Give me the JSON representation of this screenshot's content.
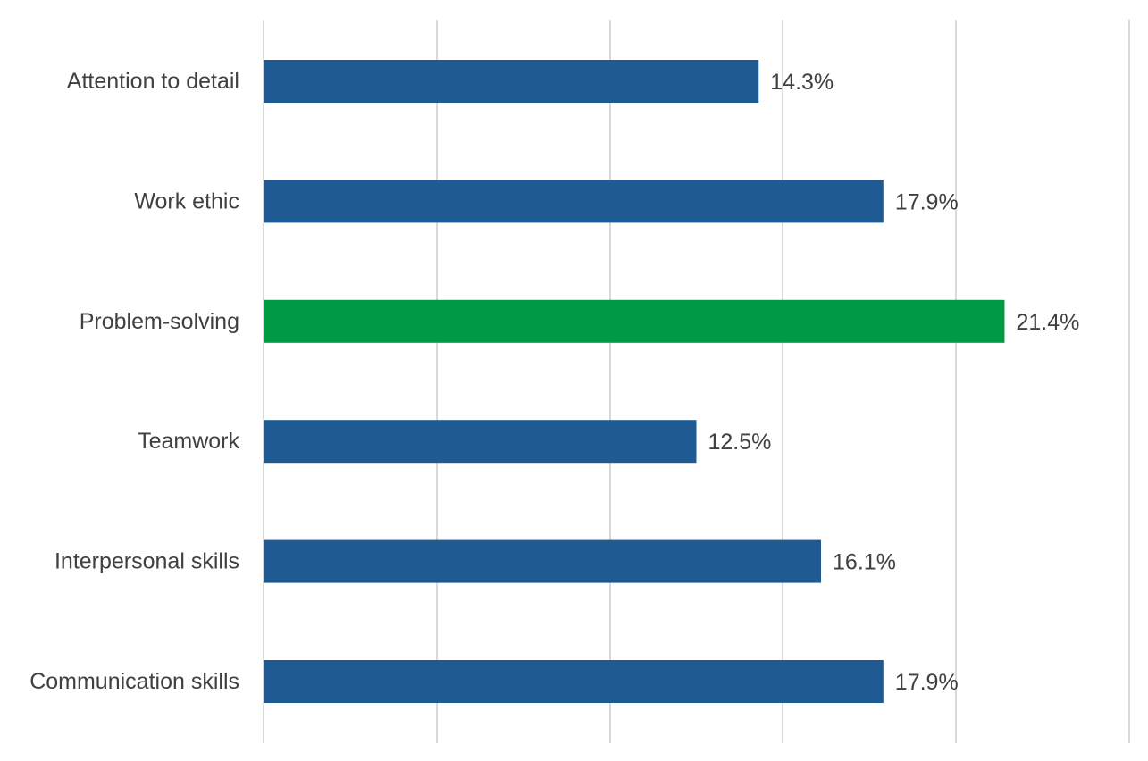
{
  "chart_data": {
    "type": "bar",
    "orientation": "horizontal",
    "categories": [
      "Attention to detail",
      "Work ethic",
      "Problem-solving",
      "Teamwork",
      "Interpersonal skills",
      "Communication skills"
    ],
    "values": [
      14.3,
      17.9,
      21.4,
      12.5,
      16.1,
      17.9
    ],
    "value_labels": [
      "14.3%",
      "17.9%",
      "21.4%",
      "12.5%",
      "16.1%",
      "17.9%"
    ],
    "xlim": [
      0,
      25
    ],
    "grid": true,
    "colors": {
      "default_bar": "#1f5a92",
      "highlight_bar": "#009a44",
      "gridline": "#d9d9d9",
      "text": "#404040"
    },
    "highlight_category": "Problem-solving"
  }
}
